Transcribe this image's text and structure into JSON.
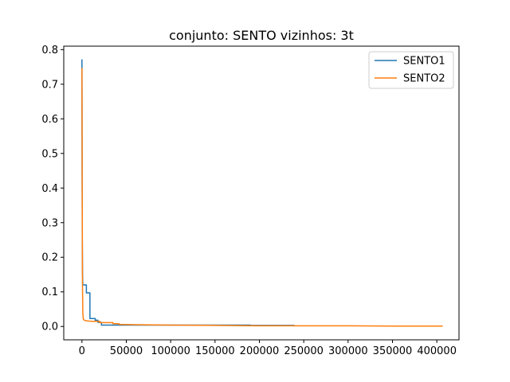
{
  "chart_data": {
    "type": "line",
    "title": "conjunto: SENTO vizinhos: 3t",
    "xlabel": "",
    "ylabel": "",
    "xlim": [
      -20500,
      425000
    ],
    "ylim": [
      -0.0386,
      0.81
    ],
    "xticks": [
      0,
      50000,
      100000,
      150000,
      200000,
      250000,
      300000,
      350000,
      400000
    ],
    "xtick_labels": [
      "0",
      "50000",
      "100000",
      "150000",
      "200000",
      "250000",
      "300000",
      "350000",
      "400000"
    ],
    "yticks": [
      0.0,
      0.1,
      0.2,
      0.3,
      0.4,
      0.5,
      0.6,
      0.7,
      0.8
    ],
    "ytick_labels": [
      "0.0",
      "0.1",
      "0.2",
      "0.3",
      "0.4",
      "0.5",
      "0.6",
      "0.7",
      "0.8"
    ],
    "grid": false,
    "legend_position": "top-right",
    "series": [
      {
        "name": "SENTO1",
        "color": "#1f77b4",
        "x": [
          0,
          200,
          400,
          700,
          1000,
          1500,
          1500,
          5000,
          5000,
          9000,
          9000,
          15000,
          15000,
          18000,
          18000,
          22000,
          22000,
          45000,
          45000,
          100000,
          190000,
          190000,
          239000
        ],
        "y": [
          0.77,
          0.45,
          0.25,
          0.15,
          0.12,
          0.12,
          0.12,
          0.12,
          0.097,
          0.097,
          0.023,
          0.023,
          0.018,
          0.018,
          0.012,
          0.012,
          0.004,
          0.004,
          0.004,
          0.004,
          0.004,
          0.003,
          0.003
        ]
      },
      {
        "name": "SENTO2",
        "color": "#ff7f0e",
        "x": [
          0,
          300,
          600,
          1000,
          1500,
          2500,
          4000,
          6000,
          10000,
          20000,
          20000,
          35000,
          35000,
          42000,
          42000,
          60000,
          100000,
          150000,
          200000,
          250000,
          300000,
          350000,
          406000
        ],
        "y": [
          0.745,
          0.4,
          0.12,
          0.04,
          0.022,
          0.018,
          0.017,
          0.016,
          0.015,
          0.015,
          0.011,
          0.011,
          0.008,
          0.008,
          0.006,
          0.005,
          0.004,
          0.003,
          0.002,
          0.002,
          0.002,
          0.001,
          0.001
        ]
      }
    ]
  }
}
